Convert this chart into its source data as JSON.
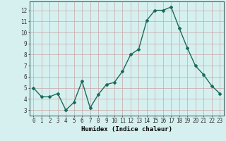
{
  "xlabel": "Humidex (Indice chaleur)",
  "ylabel": "",
  "x": [
    0,
    1,
    2,
    3,
    4,
    5,
    6,
    7,
    8,
    9,
    10,
    11,
    12,
    13,
    14,
    15,
    16,
    17,
    18,
    19,
    20,
    21,
    22,
    23
  ],
  "y": [
    5.0,
    4.2,
    4.2,
    4.5,
    3.0,
    3.7,
    5.6,
    3.2,
    4.4,
    5.3,
    5.5,
    6.5,
    8.0,
    8.5,
    11.1,
    12.0,
    12.0,
    12.3,
    10.4,
    8.6,
    7.0,
    6.2,
    5.2,
    4.5
  ],
  "line_color": "#1a6b5a",
  "marker": "D",
  "marker_size": 2.0,
  "bg_color": "#d6f0f0",
  "grid_color_major": "#c8a8a8",
  "grid_color_minor": "#e0c8c8",
  "ylim": [
    2.5,
    12.8
  ],
  "xlim": [
    -0.5,
    23.5
  ],
  "yticks": [
    3,
    4,
    5,
    6,
    7,
    8,
    9,
    10,
    11,
    12
  ],
  "xticks": [
    0,
    1,
    2,
    3,
    4,
    5,
    6,
    7,
    8,
    9,
    10,
    11,
    12,
    13,
    14,
    15,
    16,
    17,
    18,
    19,
    20,
    21,
    22,
    23
  ],
  "xlabel_fontsize": 6.5,
  "tick_fontsize": 5.5,
  "line_width": 1.0
}
